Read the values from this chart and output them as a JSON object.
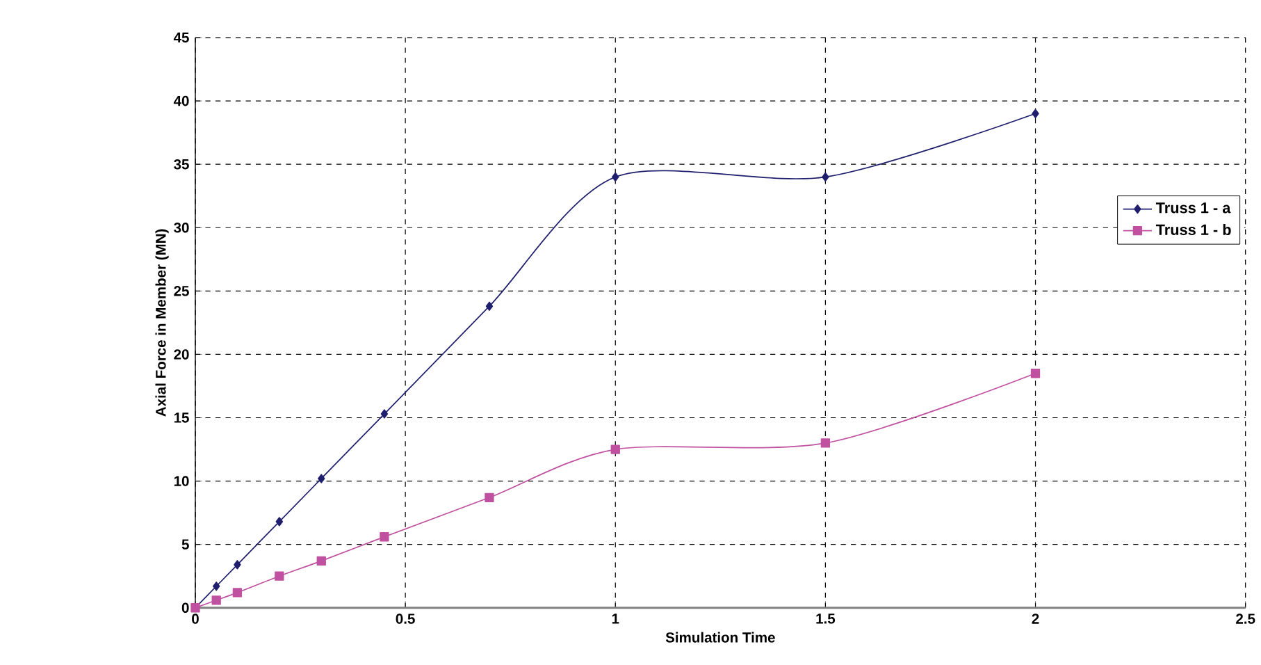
{
  "chart_data": {
    "type": "line",
    "xlabel": "Simulation Time",
    "ylabel": "Axial Force in Member (MN)",
    "xlim": [
      0,
      2.5
    ],
    "xticks": [
      0,
      0.5,
      1,
      1.5,
      2,
      2.5
    ],
    "ylim": [
      0,
      45
    ],
    "yticks": [
      0,
      5,
      10,
      15,
      20,
      25,
      30,
      35,
      40,
      45
    ],
    "grid": true,
    "legend": "right",
    "series": [
      {
        "name": "Truss 1 - a",
        "color": "#1f1f6e",
        "marker": "diamond",
        "x": [
          0,
          0.05,
          0.1,
          0.2,
          0.3,
          0.45,
          0.7,
          1,
          1.5,
          2
        ],
        "values": [
          0,
          1.7,
          3.4,
          6.8,
          10.2,
          15.3,
          23.8,
          34,
          34,
          39
        ]
      },
      {
        "name": "Truss 1 - b",
        "color": "#c050a0",
        "marker": "square",
        "x": [
          0,
          0.05,
          0.1,
          0.2,
          0.3,
          0.45,
          0.7,
          1,
          1.5,
          2
        ],
        "values": [
          0,
          0.6,
          1.2,
          2.5,
          3.7,
          5.6,
          8.7,
          12.5,
          13,
          18.5
        ]
      }
    ]
  }
}
